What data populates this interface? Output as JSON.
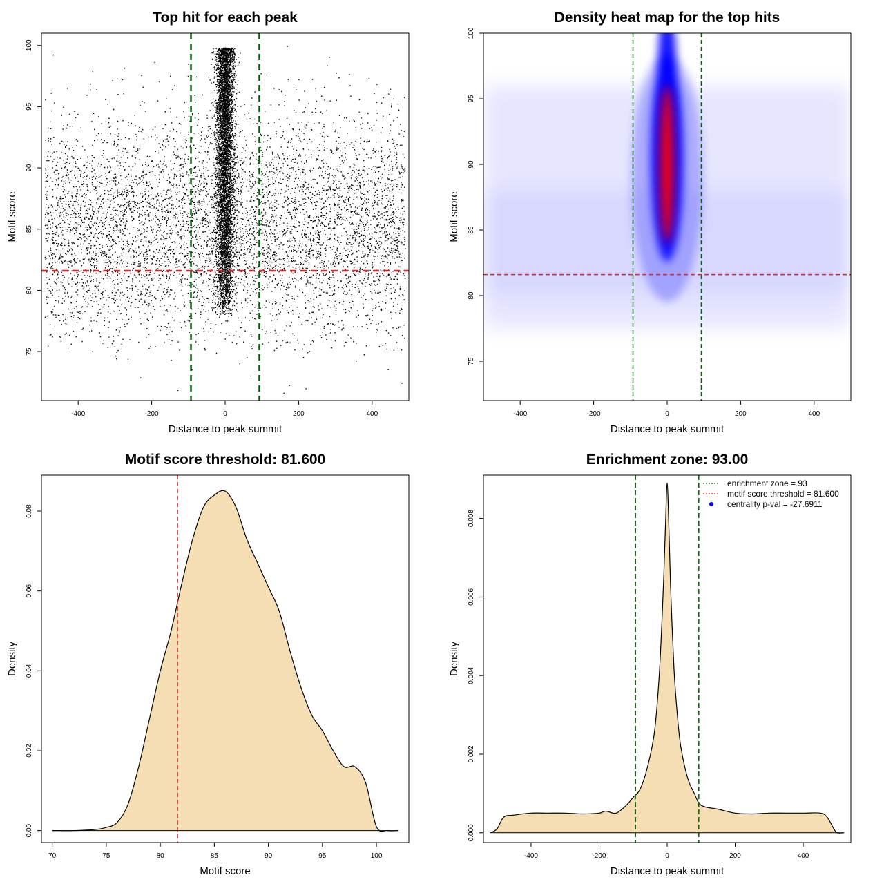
{
  "chart_data": [
    {
      "type": "scatter",
      "title": "Top hit for each peak",
      "xlabel": "Distance to peak summit",
      "ylabel": "Motif score",
      "xlim": [
        -500,
        500
      ],
      "ylim": [
        71,
        101
      ],
      "xticks": [
        -400,
        -200,
        0,
        200,
        400
      ],
      "yticks": [
        75,
        80,
        85,
        90,
        95,
        100
      ],
      "xtick_labels": [
        "-400",
        "-200",
        "0",
        "200",
        "400"
      ],
      "ytick_labels": [
        "75",
        "80",
        "85",
        "90",
        "95",
        "100"
      ],
      "point_color": "#000000",
      "vlines": [
        -93,
        93
      ],
      "vline_color": "#006400",
      "hline": 81.6,
      "hline_color": "#d62728",
      "background_x_range": [
        -490,
        490
      ],
      "background_score_center": 85,
      "central_cluster_x_sd": 12,
      "central_cluster_score_range": [
        78,
        100
      ],
      "grid": false
    },
    {
      "type": "heatmap",
      "title": "Density heat map for the top hits",
      "xlabel": "Distance to peak summit",
      "ylabel": "Motif score",
      "xlim": [
        -500,
        500
      ],
      "ylim": [
        72,
        100
      ],
      "xticks": [
        -400,
        -200,
        0,
        200,
        400
      ],
      "yticks": [
        75,
        80,
        85,
        90,
        95,
        100
      ],
      "xtick_labels": [
        "-400",
        "-200",
        "0",
        "200",
        "400"
      ],
      "ytick_labels": [
        "75",
        "80",
        "85",
        "90",
        "95",
        "100"
      ],
      "color_scale": [
        "#ffffff",
        "#0000ff",
        "#ff0000"
      ],
      "peak_x": 0,
      "peak_score": 90,
      "vlines": [
        -93,
        93
      ],
      "vline_color": "#006400",
      "hline": 81.6,
      "hline_color": "#d62728",
      "grid": false
    },
    {
      "type": "area",
      "title": "Motif score threshold: 81.600",
      "xlabel": "Motif score",
      "ylabel": "Density",
      "xlim": [
        69,
        103
      ],
      "ylim": [
        -0.003,
        0.089
      ],
      "xticks": [
        70,
        75,
        80,
        85,
        90,
        95,
        100
      ],
      "yticks": [
        0.0,
        0.02,
        0.04,
        0.06,
        0.08
      ],
      "xtick_labels": [
        "70",
        "75",
        "80",
        "85",
        "90",
        "95",
        "100"
      ],
      "ytick_labels": [
        "0.00",
        "0.02",
        "0.04",
        "0.06",
        "0.08"
      ],
      "fill_color": "#f5deb3",
      "vline": 81.6,
      "vline_color": "#d62728",
      "x": [
        70,
        72,
        74,
        75,
        76,
        77,
        78,
        79,
        80,
        81,
        82,
        83,
        84,
        85,
        86,
        87,
        88,
        89,
        90,
        91,
        92,
        93,
        94,
        95,
        96,
        97,
        98,
        99,
        100,
        101,
        102
      ],
      "y": [
        0.0,
        0.0,
        0.0003,
        0.0008,
        0.002,
        0.0065,
        0.016,
        0.028,
        0.04,
        0.05,
        0.062,
        0.073,
        0.081,
        0.084,
        0.085,
        0.081,
        0.073,
        0.067,
        0.061,
        0.055,
        0.045,
        0.036,
        0.029,
        0.025,
        0.02,
        0.016,
        0.016,
        0.012,
        0.001,
        0.0,
        0.0
      ],
      "grid": false
    },
    {
      "type": "area",
      "title": "Enrichment zone: 93.00",
      "xlabel": "Distance to peak summit",
      "ylabel": "Density",
      "xlim": [
        -540,
        540
      ],
      "ylim": [
        -0.00025,
        0.0091
      ],
      "xticks": [
        -400,
        -200,
        0,
        200,
        400
      ],
      "yticks": [
        0.0,
        0.002,
        0.004,
        0.006,
        0.008
      ],
      "xtick_labels": [
        "-400",
        "-200",
        "0",
        "200",
        "400"
      ],
      "ytick_labels": [
        "0.000",
        "0.002",
        "0.004",
        "0.006",
        "0.008"
      ],
      "fill_color": "#f5deb3",
      "vlines": [
        -93,
        93
      ],
      "vline_color": "#006400",
      "x": [
        -520,
        -500,
        -480,
        -450,
        -400,
        -350,
        -300,
        -250,
        -200,
        -180,
        -150,
        -120,
        -100,
        -80,
        -60,
        -40,
        -30,
        -20,
        -10,
        -5,
        0,
        5,
        10,
        20,
        30,
        40,
        60,
        80,
        100,
        150,
        200,
        250,
        300,
        350,
        400,
        450,
        470,
        490,
        500,
        520
      ],
      "y": [
        0.0,
        0.0001,
        0.0004,
        0.00045,
        0.0005,
        0.0005,
        0.0005,
        0.00048,
        0.0005,
        0.00055,
        0.0005,
        0.0007,
        0.0009,
        0.0011,
        0.0016,
        0.0024,
        0.0032,
        0.0045,
        0.0065,
        0.0078,
        0.0089,
        0.0078,
        0.0063,
        0.0042,
        0.003,
        0.0022,
        0.0014,
        0.001,
        0.0007,
        0.0006,
        0.0005,
        0.00048,
        0.0005,
        0.0005,
        0.0005,
        0.0005,
        0.0004,
        0.0001,
        0.0,
        0.0
      ],
      "legend": {
        "placement": "top-right",
        "entries": [
          {
            "label": "enrichment zone = 93",
            "color": "#006400",
            "style": "dotted-line"
          },
          {
            "label": "motif score threshold = 81.600",
            "color": "#d62728",
            "style": "dotted-line"
          },
          {
            "label": "centrality p-val = -27.6911",
            "color": "#0000ff",
            "style": "point"
          }
        ]
      },
      "grid": false
    }
  ]
}
